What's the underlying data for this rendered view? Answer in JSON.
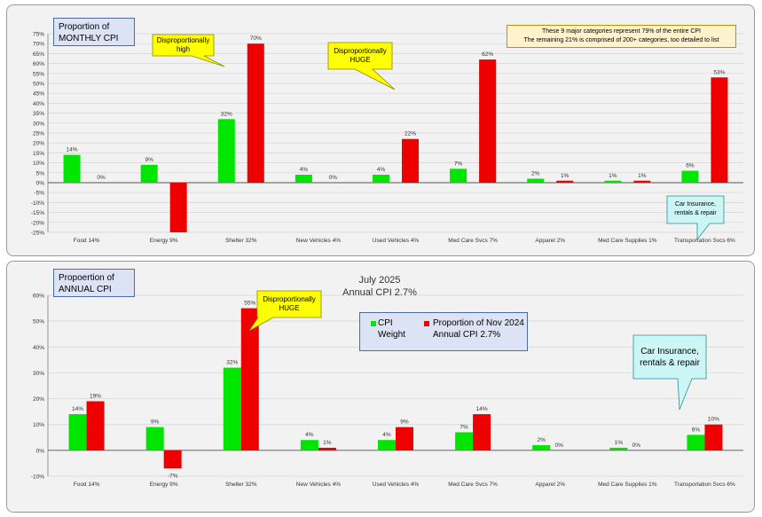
{
  "charts_meta": {
    "top": {
      "label_lines": [
        "Proportion of",
        "MONTHLY CPI"
      ],
      "note_lines": [
        "These 9 major categories represent 79% of the entire CPI",
        "The remaining 21% is comprised of 200+ categories, too detailed to list"
      ],
      "callout_high": [
        "Disproportionally",
        "high"
      ],
      "callout_huge": [
        "Disproportionally",
        "HUGE"
      ],
      "callout_car": [
        "Car Insurance,",
        "rentals & repair"
      ]
    },
    "bottom": {
      "label_lines": [
        "Propoertion of",
        "ANNUAL CPI"
      ],
      "title_lines": [
        "July 2025",
        "Annual CPI  2.7%"
      ],
      "callout_huge": [
        "Disproportionally",
        "HUGE"
      ],
      "callout_car": [
        "Car Insurance,",
        "rentals & repair"
      ],
      "legend": {
        "series1_lines": [
          "CPI",
          "Weight"
        ],
        "series2_lines": [
          "Proportion of Nov 2024",
          "Annual CPI  2.7%"
        ]
      }
    }
  },
  "colors": {
    "green": "#00e600",
    "red": "#ee0000",
    "grid": "#d4d4d4",
    "axis": "#7f7f7f"
  },
  "chart_data": [
    {
      "type": "bar",
      "categories": [
        "Food 14%",
        "Energy 9%",
        "Shelter 32%",
        "New Vehicles 4%",
        "Used Vehicles 4%",
        "Med Care Svcs 7%",
        "Apparel 2%",
        "Med Care Supplies 1%",
        "Transportation Svcs 6%"
      ],
      "series": [
        {
          "values": [
            14,
            9,
            32,
            4,
            4,
            7,
            2,
            1,
            6
          ]
        },
        {
          "values": [
            0,
            -25,
            70,
            0,
            22,
            62,
            1,
            1,
            53
          ]
        }
      ],
      "data_labels": [
        [
          "14%",
          "9%",
          "32%",
          "4%",
          "4%",
          "7%",
          "2%",
          "1%",
          "6%"
        ],
        [
          "0%",
          "",
          "70%",
          "0%",
          "22%",
          "62%",
          "1%",
          "1%",
          "53%"
        ]
      ],
      "ylim": [
        -25,
        75
      ],
      "yticks": [
        -25,
        -20,
        -15,
        -10,
        -5,
        0,
        5,
        10,
        15,
        20,
        25,
        30,
        35,
        40,
        45,
        50,
        55,
        60,
        65,
        70,
        75
      ],
      "ytick_labels": [
        "-25%",
        "-20%",
        "-15%",
        "-10%",
        "-5%",
        "0%",
        "5%",
        "10%",
        "15%",
        "20%",
        "25%",
        "30%",
        "35%",
        "40%",
        "45%",
        "50%",
        "55%",
        "60%",
        "65%",
        "70%",
        "75%"
      ],
      "grid": true
    },
    {
      "type": "bar",
      "title": "July 2025 Annual CPI 2.7%",
      "categories": [
        "Food 14%",
        "Energy 9%",
        "Shelter 32%",
        "New Vehicles 4%",
        "Used Vehicles 4%",
        "Med Care Svcs 7%",
        "Apparel 2%",
        "Med Care Supplies 1%",
        "Transportation Svcs 6%"
      ],
      "series": [
        {
          "name": "CPI Weight",
          "values": [
            14,
            9,
            32,
            4,
            4,
            7,
            2,
            1,
            6
          ]
        },
        {
          "name": "Proportion of Nov 2024 Annual CPI 2.7%",
          "values": [
            19,
            -7,
            55,
            1,
            9,
            14,
            0,
            0,
            10
          ]
        }
      ],
      "data_labels": [
        [
          "14%",
          "9%",
          "32%",
          "4%",
          "4%",
          "7%",
          "2%",
          "1%",
          "6%"
        ],
        [
          "19%",
          "-7%",
          "55%",
          "1%",
          "9%",
          "14%",
          "0%",
          "0%",
          "10%"
        ]
      ],
      "ylim": [
        -10,
        60
      ],
      "yticks": [
        -10,
        0,
        10,
        20,
        30,
        40,
        50,
        60
      ],
      "ytick_labels": [
        "-10%",
        "0%",
        "10%",
        "20%",
        "30%",
        "40%",
        "50%",
        "60%"
      ],
      "grid": true
    }
  ]
}
